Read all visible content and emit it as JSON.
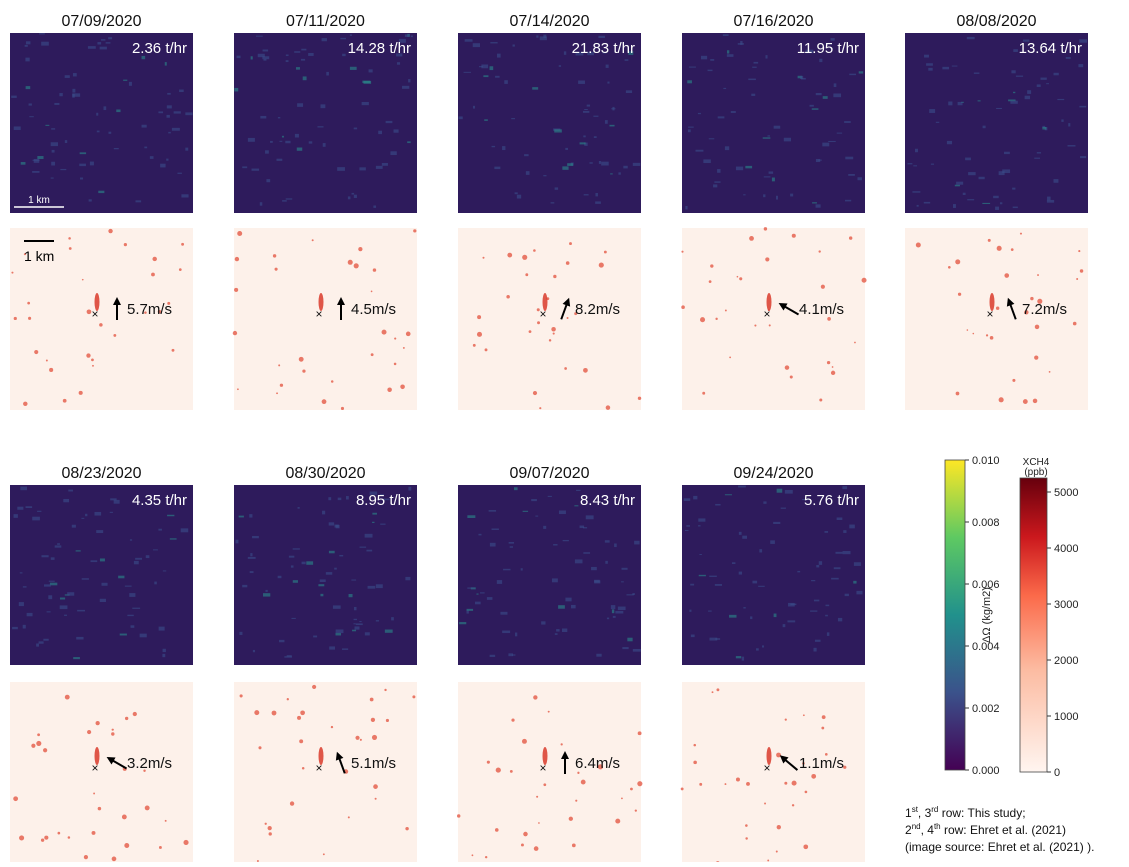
{
  "panels": [
    {
      "date": "07/09/2020",
      "rate": "2.36 t/hr",
      "wind": "5.7m/s"
    },
    {
      "date": "07/11/2020",
      "rate": "14.28 t/hr",
      "wind": "4.5m/s"
    },
    {
      "date": "07/14/2020",
      "rate": "21.83 t/hr",
      "wind": "8.2m/s"
    },
    {
      "date": "07/16/2020",
      "rate": "11.95 t/hr",
      "wind": "4.1m/s"
    },
    {
      "date": "08/08/2020",
      "rate": "13.64 t/hr",
      "wind": "7.2m/s"
    },
    {
      "date": "08/23/2020",
      "rate": "4.35 t/hr",
      "wind": "3.2m/s"
    },
    {
      "date": "08/30/2020",
      "rate": "8.95 t/hr",
      "wind": "5.1m/s"
    },
    {
      "date": "09/07/2020",
      "rate": "8.43 t/hr",
      "wind": "6.4m/s"
    },
    {
      "date": "09/24/2020",
      "rate": "5.76 t/hr",
      "wind": "1.1m/s"
    }
  ],
  "scale_bars": [
    "1 km",
    "1 km"
  ],
  "colorbars": [
    {
      "label": "ΔΩ (kg/m2)",
      "lim": [
        0,
        0.01
      ],
      "ticks": [
        {
          "value": 0,
          "label": "0.000"
        },
        {
          "value": 0.002,
          "label": "0.002"
        },
        {
          "value": 0.004,
          "label": "0.004"
        },
        {
          "value": 0.006,
          "label": "0.006"
        },
        {
          "value": 0.008,
          "label": "0.008"
        },
        {
          "value": 0.01,
          "label": "0.010"
        }
      ]
    },
    {
      "title": [
        "XCH4",
        "(ppb)"
      ],
      "lim": [
        0,
        5250
      ],
      "ticks": [
        0,
        1000,
        2000,
        3000,
        4000,
        5000
      ]
    }
  ],
  "caption": [
    [
      "1",
      "st",
      ", 3",
      "rd",
      " row: This study;"
    ],
    [
      "2",
      "nd",
      ", 4",
      "th",
      " row: Ehret et al. (2021)"
    ],
    [
      "(image source: Ehret et al. (2021) )."
    ]
  ]
}
